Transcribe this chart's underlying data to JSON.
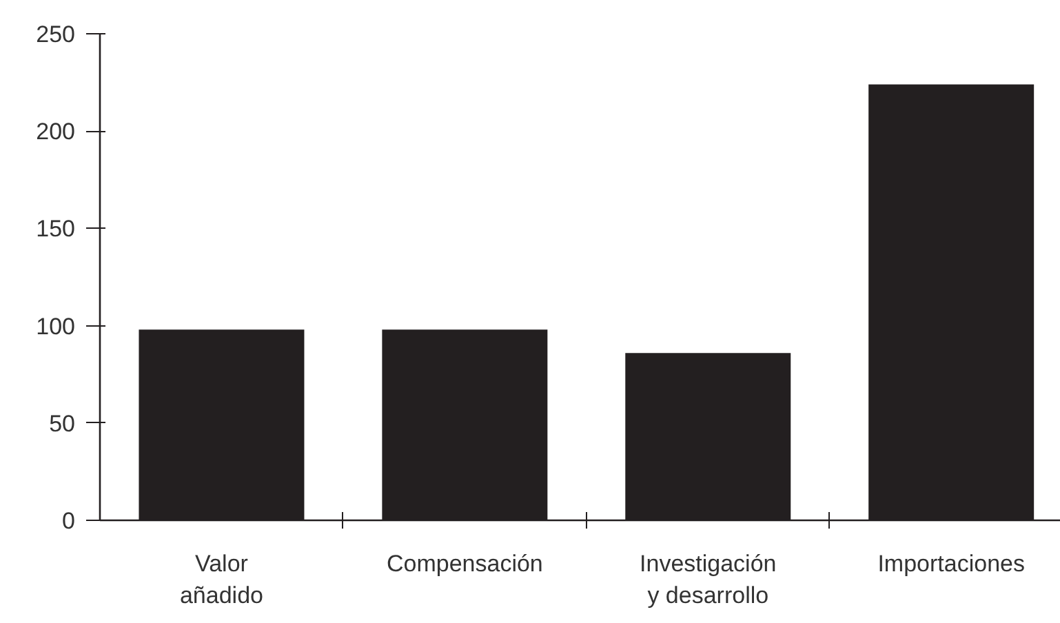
{
  "chart_data": {
    "type": "bar",
    "categories": [
      "Valor añadido",
      "Compensación",
      "Investigación y desarrollo",
      "Importaciones"
    ],
    "values": [
      98,
      98,
      86,
      224
    ],
    "color": "#231f20",
    "ylim": [
      0,
      250
    ],
    "yticks": [
      0,
      50,
      100,
      150,
      200,
      250
    ],
    "grid": false
  }
}
